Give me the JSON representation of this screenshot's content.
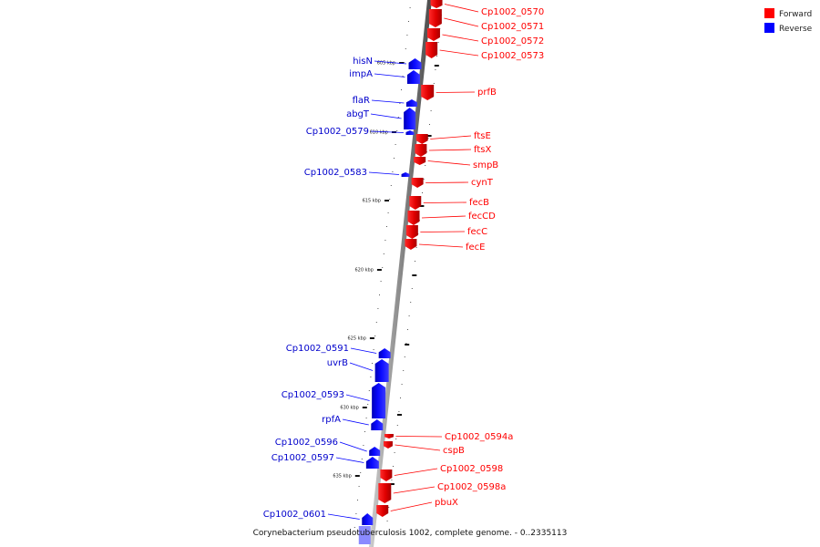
{
  "legend": [
    {
      "label": "Forward",
      "color": "#ff0000"
    },
    {
      "label": "Reverse",
      "color": "#0000ff"
    }
  ],
  "footer": "Corynebacterium pseudotuberculosis 1002, complete genome. - 0..2335113",
  "ticks": [
    "605 kbp",
    "610 kbp",
    "615 kbp",
    "620 kbp",
    "625 kbp",
    "630 kbp",
    "635 kbp"
  ],
  "forward_genes": [
    "Cp1002_0570",
    "Cp1002_0571",
    "Cp1002_0572",
    "Cp1002_0573",
    "prfB",
    "ftsE",
    "ftsX",
    "smpB",
    "cynT",
    "fecB",
    "fecCD",
    "fecC",
    "fecE",
    "Cp1002_0594a",
    "cspB",
    "Cp1002_0598",
    "Cp1002_0598a",
    "pbuX"
  ],
  "reverse_genes": [
    "hisN",
    "impA",
    "flaR",
    "abgT",
    "Cp1002_0579",
    "Cp1002_0583",
    "Cp1002_0591",
    "uvrB",
    "Cp1002_0593",
    "rpfA",
    "Cp1002_0596",
    "Cp1002_0597",
    "Cp1002_0601"
  ]
}
